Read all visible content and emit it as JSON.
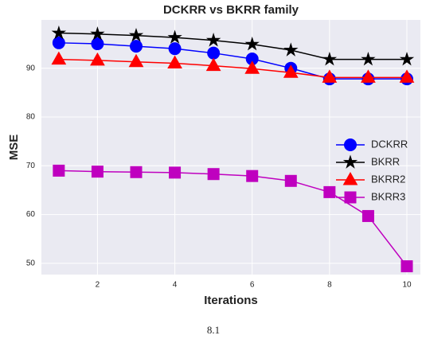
{
  "chart_data": {
    "type": "line",
    "title": "DCKRR vs BKRR family",
    "x_label": "Iterations",
    "y_label": "MSE",
    "caption": "8.1",
    "x": [
      1,
      2,
      3,
      4,
      5,
      6,
      7,
      8,
      9,
      10
    ],
    "series": [
      {
        "name": "DCKRR",
        "color": "#0000ff",
        "marker": "circle",
        "values": [
          95.2,
          95.0,
          94.5,
          94.0,
          93.1,
          91.9,
          90.0,
          87.8,
          87.8,
          87.8
        ]
      },
      {
        "name": "BKRR",
        "color": "#000000",
        "marker": "star",
        "values": [
          97.2,
          97.0,
          96.7,
          96.3,
          95.7,
          94.9,
          93.7,
          91.8,
          91.8,
          91.8
        ]
      },
      {
        "name": "BKRR2",
        "color": "#ff0000",
        "marker": "triangle",
        "values": [
          91.8,
          91.6,
          91.3,
          91.0,
          90.5,
          89.9,
          89.1,
          88.1,
          88.1,
          88.1
        ]
      },
      {
        "name": "BKRR3",
        "color": "#bf00bf",
        "marker": "square",
        "values": [
          69.0,
          68.8,
          68.7,
          68.6,
          68.3,
          67.9,
          66.9,
          64.6,
          59.7,
          49.4
        ]
      }
    ],
    "xlim": [
      0.55,
      10.35
    ],
    "xticks": [
      2,
      4,
      6,
      8,
      10
    ],
    "ylim": [
      47.7,
      99.9
    ],
    "yticks": [
      50,
      60,
      70,
      80,
      90
    ],
    "grid": true,
    "legend": "right"
  }
}
